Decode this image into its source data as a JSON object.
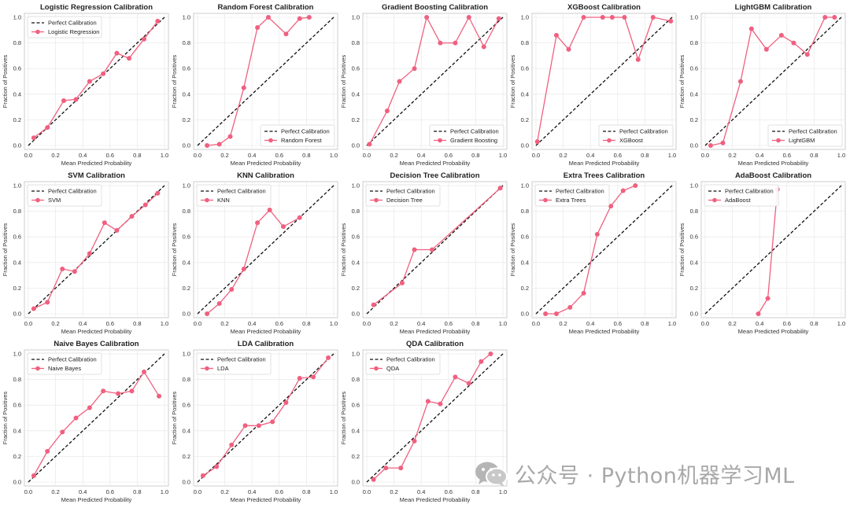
{
  "colors": {
    "series": "#f0607f",
    "perfect": "#111111",
    "grid": "#ebebeb",
    "axes": "#cccccc"
  },
  "watermark": {
    "text": "公众号 · Python机器学习ML"
  },
  "chart_data": [
    {
      "type": "line",
      "title": "Logistic Regression Calibration",
      "xlabel": "Mean Predicted Probability",
      "ylabel": "Fraction of Positives",
      "xlim": [
        0,
        1
      ],
      "ylim": [
        0,
        1
      ],
      "grid": true,
      "legend": "upper-left",
      "legend_labels": [
        "Perfect Calibration",
        "Logistic Regression"
      ],
      "x": [
        0.04,
        0.14,
        0.26,
        0.35,
        0.45,
        0.55,
        0.65,
        0.74,
        0.85,
        0.95
      ],
      "y": [
        0.06,
        0.14,
        0.35,
        0.36,
        0.5,
        0.56,
        0.72,
        0.68,
        0.83,
        0.97
      ]
    },
    {
      "type": "line",
      "title": "Random Forest Calibration",
      "xlabel": "Mean Predicted Probability",
      "ylabel": "Fraction of Positives",
      "xlim": [
        0,
        1
      ],
      "ylim": [
        0,
        1
      ],
      "grid": true,
      "legend": "lower-right",
      "legend_labels": [
        "Perfect Calibration",
        "Random Forest"
      ],
      "x": [
        0.07,
        0.16,
        0.24,
        0.34,
        0.44,
        0.52,
        0.65,
        0.75,
        0.82
      ],
      "y": [
        0.0,
        0.01,
        0.07,
        0.45,
        0.92,
        1.0,
        0.87,
        0.99,
        1.0
      ]
    },
    {
      "type": "line",
      "title": "Gradient Boosting Calibration",
      "xlabel": "Mean Predicted Probability",
      "ylabel": "Fraction of Positives",
      "xlim": [
        0,
        1
      ],
      "ylim": [
        0,
        1
      ],
      "grid": true,
      "legend": "lower-right",
      "legend_labels": [
        "Perfect Calibration",
        "Gradient Boosting"
      ],
      "x": [
        0.02,
        0.15,
        0.24,
        0.35,
        0.44,
        0.54,
        0.65,
        0.75,
        0.86,
        0.97
      ],
      "y": [
        0.01,
        0.27,
        0.5,
        0.6,
        1.0,
        0.8,
        0.8,
        1.0,
        0.77,
        0.99
      ]
    },
    {
      "type": "line",
      "title": "XGBoost Calibration",
      "xlabel": "Mean Predicted Probability",
      "ylabel": "Fraction of Positives",
      "xlim": [
        0,
        1
      ],
      "ylim": [
        0,
        1
      ],
      "grid": true,
      "legend": "lower-right",
      "legend_labels": [
        "Perfect Calibration",
        "XGBoost"
      ],
      "x": [
        0.01,
        0.15,
        0.24,
        0.35,
        0.49,
        0.56,
        0.65,
        0.75,
        0.86,
        0.99
      ],
      "y": [
        0.03,
        0.86,
        0.75,
        1.0,
        1.0,
        1.0,
        1.0,
        0.67,
        1.0,
        0.97
      ]
    },
    {
      "type": "line",
      "title": "LightGBM Calibration",
      "xlabel": "Mean Predicted Probability",
      "ylabel": "Fraction of Positives",
      "xlim": [
        0,
        1
      ],
      "ylim": [
        0,
        1
      ],
      "grid": true,
      "legend": "lower-right",
      "legend_labels": [
        "Perfect Calibration",
        "LightGBM"
      ],
      "x": [
        0.04,
        0.13,
        0.26,
        0.34,
        0.45,
        0.56,
        0.65,
        0.75,
        0.88,
        0.95
      ],
      "y": [
        0.0,
        0.02,
        0.5,
        0.91,
        0.75,
        0.86,
        0.8,
        0.71,
        1.0,
        1.0
      ]
    },
    {
      "type": "line",
      "title": "SVM Calibration",
      "xlabel": "Mean Predicted Probability",
      "ylabel": "Fraction of Positives",
      "xlim": [
        0,
        1
      ],
      "ylim": [
        0,
        1
      ],
      "grid": true,
      "legend": "upper-left",
      "legend_labels": [
        "Perfect Calibration",
        "SVM"
      ],
      "x": [
        0.04,
        0.14,
        0.25,
        0.34,
        0.45,
        0.56,
        0.65,
        0.76,
        0.86,
        0.95
      ],
      "y": [
        0.04,
        0.09,
        0.35,
        0.33,
        0.47,
        0.71,
        0.65,
        0.76,
        0.85,
        0.94
      ]
    },
    {
      "type": "line",
      "title": "KNN Calibration",
      "xlabel": "Mean Predicted Probability",
      "ylabel": "Fraction of Positives",
      "xlim": [
        0,
        1
      ],
      "ylim": [
        0,
        1
      ],
      "grid": true,
      "legend": "upper-left",
      "legend_labels": [
        "Perfect Calibration",
        "KNN"
      ],
      "x": [
        0.07,
        0.16,
        0.25,
        0.34,
        0.44,
        0.53,
        0.63,
        0.75
      ],
      "y": [
        0.0,
        0.08,
        0.19,
        0.35,
        0.71,
        0.81,
        0.68,
        0.75
      ]
    },
    {
      "type": "line",
      "title": "Decision Tree Calibration",
      "xlabel": "Mean Predicted Probability",
      "ylabel": "Fraction of Positives",
      "xlim": [
        0,
        1
      ],
      "ylim": [
        0,
        1
      ],
      "grid": true,
      "legend": "upper-left",
      "legend_labels": [
        "Perfect Calibration",
        "Decision Tree"
      ],
      "x": [
        0.05,
        0.26,
        0.35,
        0.48,
        0.98
      ],
      "y": [
        0.07,
        0.24,
        0.5,
        0.5,
        0.98
      ]
    },
    {
      "type": "line",
      "title": "Extra Trees Calibration",
      "xlabel": "Mean Predicted Probability",
      "ylabel": "Fraction of Positives",
      "xlim": [
        0,
        1
      ],
      "ylim": [
        0,
        1
      ],
      "grid": true,
      "legend": "upper-left",
      "legend_labels": [
        "Perfect Calibration",
        "Extra Trees"
      ],
      "x": [
        0.07,
        0.15,
        0.25,
        0.35,
        0.45,
        0.55,
        0.64,
        0.73
      ],
      "y": [
        0.0,
        0.0,
        0.05,
        0.16,
        0.62,
        0.84,
        0.96,
        1.0
      ]
    },
    {
      "type": "line",
      "title": "AdaBoost Calibration",
      "xlabel": "Mean Predicted Probability",
      "ylabel": "Fraction of Positives",
      "xlim": [
        0,
        1
      ],
      "ylim": [
        0,
        1
      ],
      "grid": true,
      "legend": "upper-left",
      "legend_labels": [
        "Perfect Calibration",
        "AdaBoost"
      ],
      "x": [
        0.39,
        0.46,
        0.53
      ],
      "y": [
        0.0,
        0.12,
        0.97
      ]
    },
    {
      "type": "line",
      "title": "Naive Bayes Calibration",
      "xlabel": "Mean Predicted Probability",
      "ylabel": "Fraction of Positives",
      "xlim": [
        0,
        1
      ],
      "ylim": [
        0,
        1
      ],
      "grid": true,
      "legend": "upper-left",
      "legend_labels": [
        "Perfect Calibration",
        "Naive Bayes"
      ],
      "x": [
        0.04,
        0.14,
        0.25,
        0.35,
        0.45,
        0.55,
        0.66,
        0.76,
        0.85,
        0.96
      ],
      "y": [
        0.05,
        0.24,
        0.39,
        0.5,
        0.58,
        0.71,
        0.69,
        0.71,
        0.86,
        0.67
      ]
    },
    {
      "type": "line",
      "title": "LDA Calibration",
      "xlabel": "Mean Predicted Probability",
      "ylabel": "Fraction of Positives",
      "xlim": [
        0,
        1
      ],
      "ylim": [
        0,
        1
      ],
      "grid": true,
      "legend": "upper-left",
      "legend_labels": [
        "Perfect Calibration",
        "LDA"
      ],
      "x": [
        0.04,
        0.14,
        0.25,
        0.35,
        0.45,
        0.55,
        0.65,
        0.75,
        0.85,
        0.96
      ],
      "y": [
        0.05,
        0.12,
        0.29,
        0.44,
        0.44,
        0.47,
        0.62,
        0.81,
        0.82,
        0.97
      ]
    },
    {
      "type": "line",
      "title": "QDA Calibration",
      "xlabel": "Mean Predicted Probability",
      "ylabel": "Fraction of Positives",
      "xlim": [
        0,
        1
      ],
      "ylim": [
        0,
        1
      ],
      "grid": true,
      "legend": "upper-left",
      "legend_labels": [
        "Perfect Calibration",
        "QDA"
      ],
      "x": [
        0.05,
        0.14,
        0.25,
        0.35,
        0.45,
        0.54,
        0.65,
        0.75,
        0.84,
        0.91
      ],
      "y": [
        0.02,
        0.11,
        0.11,
        0.32,
        0.63,
        0.61,
        0.82,
        0.77,
        0.94,
        1.0
      ]
    }
  ],
  "ticks": [
    "0.0",
    "0.2",
    "0.4",
    "0.6",
    "0.8",
    "1.0"
  ]
}
